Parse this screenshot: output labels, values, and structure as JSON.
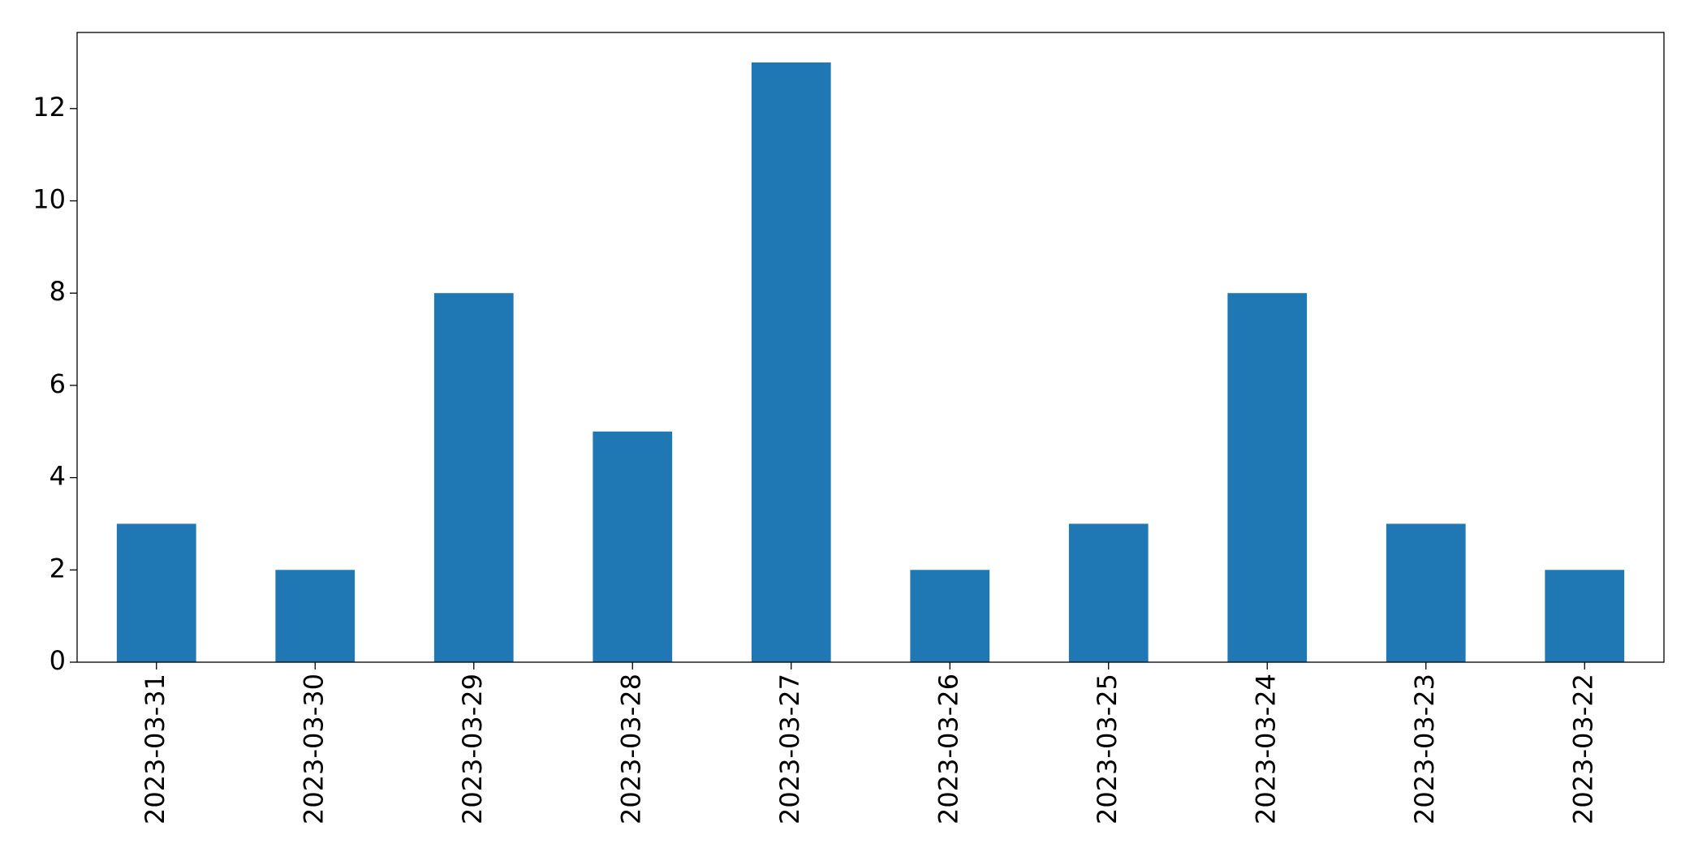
{
  "chart_data": {
    "type": "bar",
    "categories": [
      "2023-03-31",
      "2023-03-30",
      "2023-03-29",
      "2023-03-28",
      "2023-03-27",
      "2023-03-26",
      "2023-03-25",
      "2023-03-24",
      "2023-03-23",
      "2023-03-22"
    ],
    "values": [
      3,
      2,
      8,
      5,
      13,
      2,
      3,
      8,
      3,
      2
    ],
    "color": "#1f77b4",
    "ylim": [
      0,
      13.65
    ],
    "yticks": [
      0,
      2,
      4,
      6,
      8,
      10,
      12
    ],
    "grid": false
  }
}
